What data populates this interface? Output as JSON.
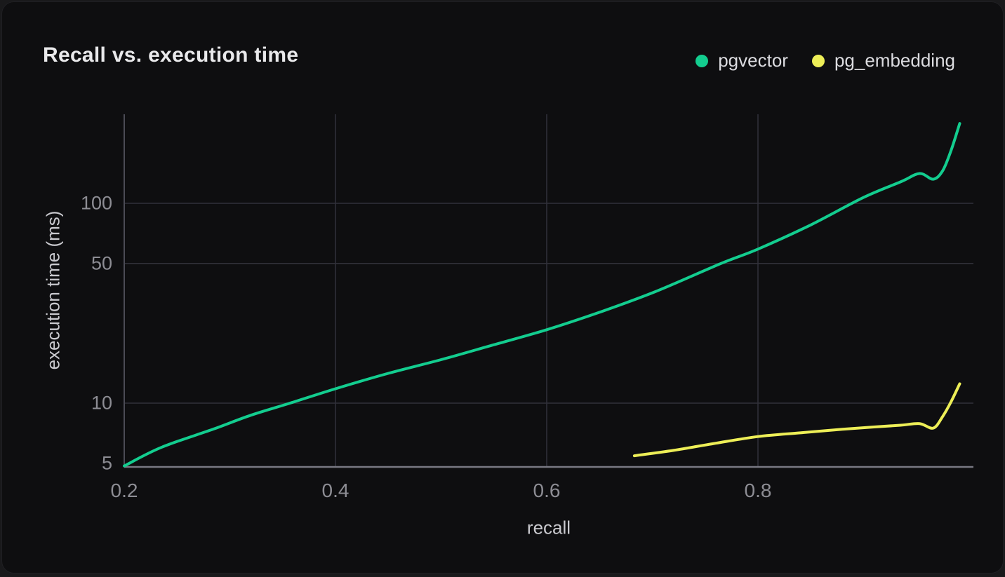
{
  "chart_data": {
    "type": "line",
    "title": "Recall vs. execution time",
    "xlabel": "recall",
    "ylabel": "execution time (ms)",
    "x_scale": "linear",
    "y_scale": "log",
    "xlim": [
      0.2,
      1.004
    ],
    "ylim": [
      4.8,
      280
    ],
    "grid": true,
    "legend_position": "top-right",
    "x_ticks": [
      {
        "label": "0.2",
        "value": 0.2
      },
      {
        "label": "0.4",
        "value": 0.4
      },
      {
        "label": "0.6",
        "value": 0.6
      },
      {
        "label": "0.8",
        "value": 0.8
      }
    ],
    "y_ticks": [
      {
        "label": "100",
        "value": 100
      },
      {
        "label": "50",
        "value": 50
      },
      {
        "label": "10",
        "value": 10
      },
      {
        "label": "5",
        "value": 5
      }
    ],
    "x_gridlines": [
      0.4,
      0.6,
      0.8
    ],
    "y_gridlines": [
      10,
      50,
      100
    ],
    "series": [
      {
        "name": "pgvector",
        "color": "#13cd8f",
        "points": [
          [
            0.2,
            4.85
          ],
          [
            0.235,
            6.0
          ],
          [
            0.284,
            7.4
          ],
          [
            0.32,
            8.7
          ],
          [
            0.357,
            10.0
          ],
          [
            0.4,
            11.8
          ],
          [
            0.45,
            14.1
          ],
          [
            0.5,
            16.5
          ],
          [
            0.55,
            19.6
          ],
          [
            0.6,
            23.3
          ],
          [
            0.65,
            28.5
          ],
          [
            0.702,
            36.0
          ],
          [
            0.765,
            50.0
          ],
          [
            0.8,
            59.0
          ],
          [
            0.85,
            78.0
          ],
          [
            0.9,
            107.0
          ],
          [
            0.935,
            128.0
          ],
          [
            0.953,
            141.0
          ],
          [
            0.966,
            132.0
          ],
          [
            0.975,
            146.0
          ],
          [
            0.983,
            185.0
          ],
          [
            0.991,
            251.0
          ]
        ]
      },
      {
        "name": "pg_embedding",
        "color": "#edee57",
        "points": [
          [
            0.683,
            5.45
          ],
          [
            0.72,
            5.8
          ],
          [
            0.76,
            6.3
          ],
          [
            0.8,
            6.8
          ],
          [
            0.84,
            7.1
          ],
          [
            0.88,
            7.4
          ],
          [
            0.91,
            7.6
          ],
          [
            0.935,
            7.75
          ],
          [
            0.953,
            7.9
          ],
          [
            0.966,
            7.5
          ],
          [
            0.975,
            8.6
          ],
          [
            0.983,
            10.2
          ],
          [
            0.991,
            12.5
          ]
        ]
      }
    ],
    "colors": {
      "card_background": "#0e0e10",
      "gridline": "#31313a",
      "y_axis_line": "#4b4b55",
      "x_axis_line": "#787882"
    }
  }
}
